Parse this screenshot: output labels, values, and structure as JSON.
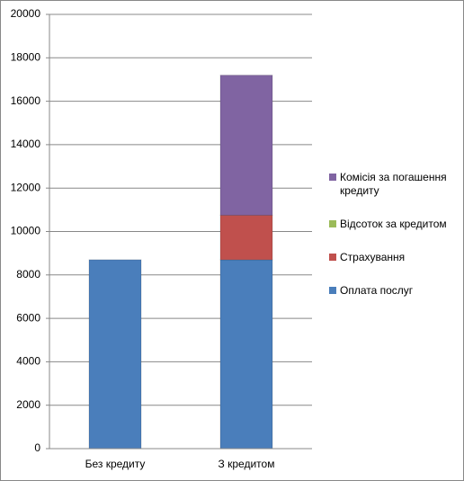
{
  "chart_data": {
    "type": "stacked-bar",
    "categories": [
      "Без кредиту",
      "З кредитом"
    ],
    "series": [
      {
        "name": "Оплата послуг",
        "color": "#4a7ebb",
        "values": [
          8700,
          8700
        ]
      },
      {
        "name": "Страхування",
        "color": "#c0504d",
        "values": [
          0,
          2050
        ]
      },
      {
        "name": "Відсоток за кредитом",
        "color": "#9bbb59",
        "values": [
          0,
          0
        ]
      },
      {
        "name": "Комісія за погашення кредиту",
        "color": "#8064a2",
        "values": [
          0,
          6450
        ]
      }
    ],
    "ylim": [
      0,
      20000
    ],
    "yticks": [
      0,
      2000,
      4000,
      6000,
      8000,
      10000,
      12000,
      14000,
      16000,
      18000,
      20000
    ],
    "grid": true
  }
}
